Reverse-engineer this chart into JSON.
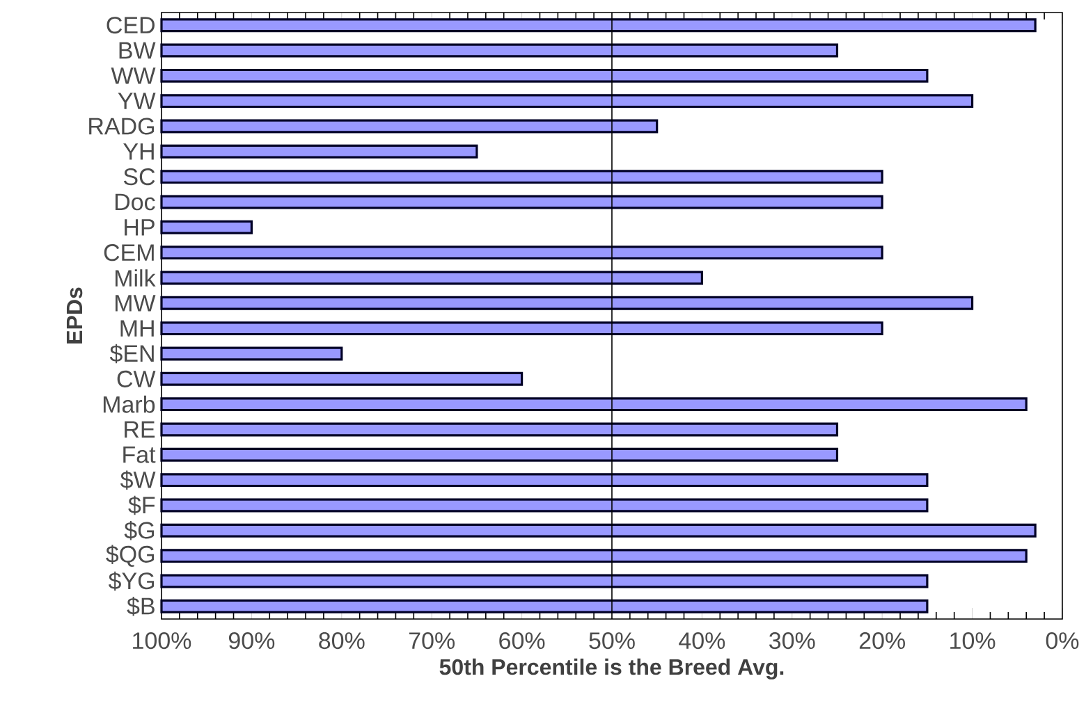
{
  "chart_data": {
    "type": "bar",
    "orientation": "horizontal",
    "xlabel": "50th Percentile is the Breed Avg.",
    "ylabel": "EPDs",
    "categories": [
      "CED",
      "BW",
      "WW",
      "YW",
      "RADG",
      "YH",
      "SC",
      "Doc",
      "HP",
      "CEM",
      "Milk",
      "MW",
      "MH",
      "$EN",
      "CW",
      "Marb",
      "RE",
      "Fat",
      "$W",
      "$F",
      "$G",
      "$QG",
      "$YG",
      "$B"
    ],
    "values": [
      -97,
      -75,
      -85,
      -90,
      -55,
      -35,
      -80,
      -80,
      -10,
      -80,
      -60,
      -90,
      -80,
      -20,
      -40,
      -96,
      -75,
      -75,
      -85,
      -85,
      -97,
      -96,
      -85,
      -85
    ],
    "base": [
      100,
      100,
      100,
      100,
      100,
      100,
      100,
      100,
      100,
      100,
      100,
      100,
      100,
      100,
      100,
      100,
      100,
      100,
      100,
      100,
      100,
      100,
      100,
      100
    ],
    "color": "#9999ff",
    "xlim": [
      100,
      0
    ],
    "xticks": [
      {
        "value": 100,
        "label": "100%"
      },
      {
        "value": 90,
        "label": "90%"
      },
      {
        "value": 80,
        "label": "80%"
      },
      {
        "value": 70,
        "label": "70%"
      },
      {
        "value": 60,
        "label": "60%"
      },
      {
        "value": 50,
        "label": "50%"
      },
      {
        "value": 40,
        "label": "40%"
      },
      {
        "value": 30,
        "label": "30%"
      },
      {
        "value": 20,
        "label": "20%"
      },
      {
        "value": 10,
        "label": "10%"
      },
      {
        "value": 0,
        "label": "0%"
      }
    ],
    "ref_lines": [
      {
        "axis": "x",
        "value": 50,
        "color": "#000000"
      }
    ]
  }
}
